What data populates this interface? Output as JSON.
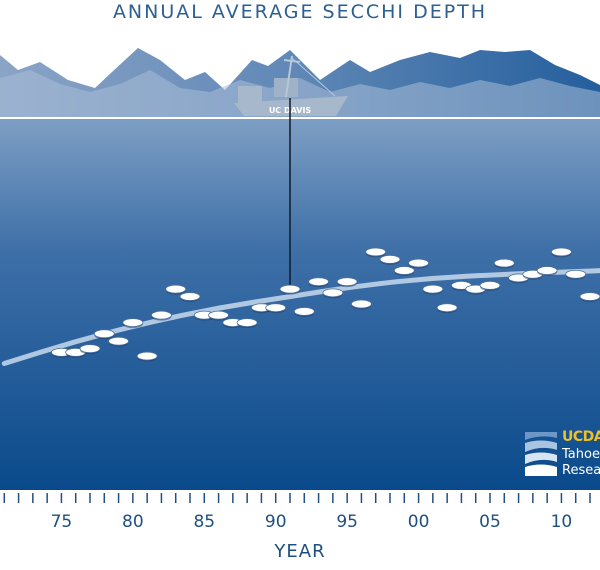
{
  "chart_data": {
    "type": "scatter",
    "title": "ANNUAL AVERAGE SECCHI DEPTH",
    "xlabel": "YEAR",
    "ylabel": "",
    "x_tick_labels": [
      "75",
      "80",
      "85",
      "90",
      "95",
      "00",
      "05",
      "10"
    ],
    "x_tick_years": [
      1975,
      1980,
      1985,
      1990,
      1995,
      2000,
      2005,
      2010
    ],
    "xlim": [
      1970.7,
      2012.7
    ],
    "points": [
      {
        "year": 1975,
        "depth": 0.63
      },
      {
        "year": 1976,
        "depth": 0.63
      },
      {
        "year": 1977,
        "depth": 0.62
      },
      {
        "year": 1978,
        "depth": 0.58
      },
      {
        "year": 1979,
        "depth": 0.6
      },
      {
        "year": 1980,
        "depth": 0.55
      },
      {
        "year": 1981,
        "depth": 0.64
      },
      {
        "year": 1982,
        "depth": 0.53
      },
      {
        "year": 1983,
        "depth": 0.46
      },
      {
        "year": 1984,
        "depth": 0.48
      },
      {
        "year": 1985,
        "depth": 0.53
      },
      {
        "year": 1986,
        "depth": 0.53
      },
      {
        "year": 1987,
        "depth": 0.55
      },
      {
        "year": 1988,
        "depth": 0.55
      },
      {
        "year": 1989,
        "depth": 0.51
      },
      {
        "year": 1990,
        "depth": 0.51
      },
      {
        "year": 1991,
        "depth": 0.46
      },
      {
        "year": 1992,
        "depth": 0.52
      },
      {
        "year": 1993,
        "depth": 0.44
      },
      {
        "year": 1994,
        "depth": 0.47
      },
      {
        "year": 1995,
        "depth": 0.44
      },
      {
        "year": 1996,
        "depth": 0.5
      },
      {
        "year": 1997,
        "depth": 0.36
      },
      {
        "year": 1998,
        "depth": 0.38
      },
      {
        "year": 1999,
        "depth": 0.41
      },
      {
        "year": 2000,
        "depth": 0.39
      },
      {
        "year": 2001,
        "depth": 0.46
      },
      {
        "year": 2002,
        "depth": 0.51
      },
      {
        "year": 2003,
        "depth": 0.45
      },
      {
        "year": 2004,
        "depth": 0.46
      },
      {
        "year": 2005,
        "depth": 0.45
      },
      {
        "year": 2006,
        "depth": 0.39
      },
      {
        "year": 2007,
        "depth": 0.43
      },
      {
        "year": 2008,
        "depth": 0.42
      },
      {
        "year": 2009,
        "depth": 0.41
      },
      {
        "year": 2010,
        "depth": 0.36
      },
      {
        "year": 2011,
        "depth": 0.42
      },
      {
        "year": 2012,
        "depth": 0.48
      }
    ],
    "trend": [
      {
        "year": 1971,
        "depth": 0.66
      },
      {
        "year": 1976,
        "depth": 0.6
      },
      {
        "year": 1981,
        "depth": 0.55
      },
      {
        "year": 1986,
        "depth": 0.51
      },
      {
        "year": 1991,
        "depth": 0.48
      },
      {
        "year": 1996,
        "depth": 0.45
      },
      {
        "year": 2001,
        "depth": 0.43
      },
      {
        "year": 2006,
        "depth": 0.42
      },
      {
        "year": 2013,
        "depth": 0.41
      }
    ],
    "depth_scale_note": "fraction of plot height below the surface line (0 = surface)"
  },
  "boat": {
    "label": "UC DAVIS"
  },
  "logo": {
    "wordmark_uc": "UC",
    "wordmark_rest": "DA",
    "line1": "Tahoe",
    "line2": "Resea"
  },
  "colors": {
    "water_top": "#7d9ec3",
    "water_bottom": "#0b4a8c",
    "mountain_light": "#8fa8c8",
    "mountain_dark": "#2f6aa5",
    "trend": "#c9daf0",
    "disk": "#ffffff",
    "label": "#1f4f80"
  }
}
